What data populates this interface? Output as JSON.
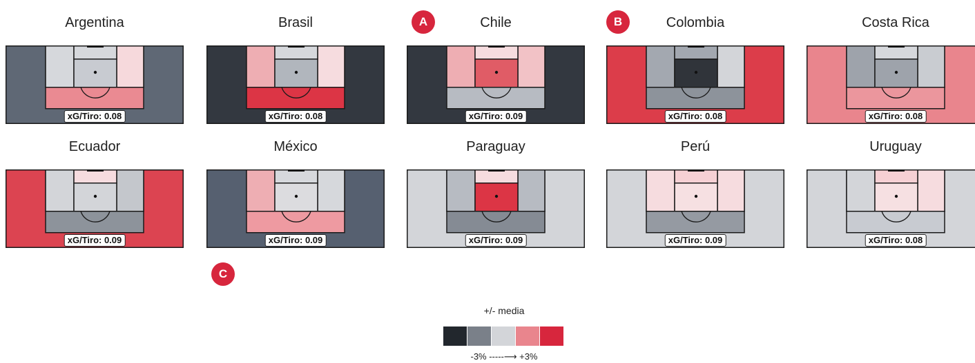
{
  "chart_data": {
    "type": "heatmap",
    "description_zones": [
      "flanks",
      "box_left",
      "box_right",
      "six_yard",
      "penalty_spot",
      "zone_14"
    ],
    "panels": [
      {
        "name": "Argentina",
        "xg_label": "xG/Tiro: 0.08",
        "colors": {
          "flanks": "#5f6875",
          "box_left": "#d6d8dc",
          "box_right": "#f6d9dc",
          "six_yard": "#d6d8dc",
          "penalty_spot": "#c8cbd1",
          "zone_14": "#ea8a92"
        }
      },
      {
        "name": "Brasil",
        "xg_label": "xG/Tiro: 0.08",
        "colors": {
          "flanks": "#333840",
          "box_left": "#eeaeb3",
          "box_right": "#f6dcdf",
          "six_yard": "#d6d8dc",
          "penalty_spot": "#b1b6bd",
          "zone_14": "#dc3545"
        }
      },
      {
        "name": "Chile",
        "xg_label": "xG/Tiro: 0.09",
        "colors": {
          "flanks": "#333840",
          "box_left": "#eeaeb3",
          "box_right": "#f2c2c6",
          "six_yard": "#f6dcdf",
          "penalty_spot": "#e05c66",
          "zone_14": "#b7bbc2"
        }
      },
      {
        "name": "Colombia",
        "xg_label": "xG/Tiro: 0.08",
        "colors": {
          "flanks": "#dc3d4a",
          "box_left": "#a3a8b0",
          "box_right": "#d3d5d9",
          "six_yard": "#a3a8b0",
          "penalty_spot": "#30343a",
          "zone_14": "#8d939b"
        }
      },
      {
        "name": "Costa Rica",
        "xg_label": "xG/Tiro: 0.08",
        "colors": {
          "flanks": "#e9858d",
          "box_left": "#9ea3ab",
          "box_right": "#c9ccd1",
          "six_yard": "#d6d8dc",
          "penalty_spot": "#9ea3ab",
          "zone_14": "#eb969d"
        }
      },
      {
        "name": "Ecuador",
        "xg_label": "xG/Tiro: 0.09",
        "colors": {
          "flanks": "#dc4451",
          "box_left": "#d3d5d9",
          "box_right": "#c4c7cc",
          "six_yard": "#f6dcdf",
          "penalty_spot": "#d3d5d9",
          "zone_14": "#8d939b"
        }
      },
      {
        "name": "México",
        "xg_label": "xG/Tiro: 0.09",
        "colors": {
          "flanks": "#566070",
          "box_left": "#eeaeb3",
          "box_right": "#d6d8dc",
          "six_yard": "#d6d8dc",
          "penalty_spot": "#dcdcdf",
          "zone_14": "#ee9aa1"
        }
      },
      {
        "name": "Paraguay",
        "xg_label": "xG/Tiro: 0.09",
        "colors": {
          "flanks": "#d3d5d9",
          "box_left": "#b7bbc2",
          "box_right": "#b7bbc2",
          "six_yard": "#f6dcdf",
          "penalty_spot": "#dc3545",
          "zone_14": "#858b94"
        }
      },
      {
        "name": "Perú",
        "xg_label": "xG/Tiro: 0.09",
        "colors": {
          "flanks": "#d3d5d9",
          "box_left": "#f6dcdf",
          "box_right": "#f6dcdf",
          "six_yard": "#f6d0d4",
          "penalty_spot": "#f6e0e2",
          "zone_14": "#959aa2"
        }
      },
      {
        "name": "Uruguay",
        "xg_label": "xG/Tiro: 0.08",
        "colors": {
          "flanks": "#d3d5d9",
          "box_left": "#d3d5d9",
          "box_right": "#f6dcdf",
          "six_yard": "#f6d0d4",
          "penalty_spot": "#f6e0e2",
          "zone_14": "#c8cbd1"
        }
      }
    ],
    "legend": {
      "title": "+/- media",
      "range_label": "-3% -----⟶ +3%",
      "colors": [
        "#22272d",
        "#7a8089",
        "#d3d5d9",
        "#e9858d",
        "#d7263d"
      ]
    }
  },
  "markers": [
    {
      "label": "A"
    },
    {
      "label": "B"
    },
    {
      "label": "C"
    }
  ]
}
